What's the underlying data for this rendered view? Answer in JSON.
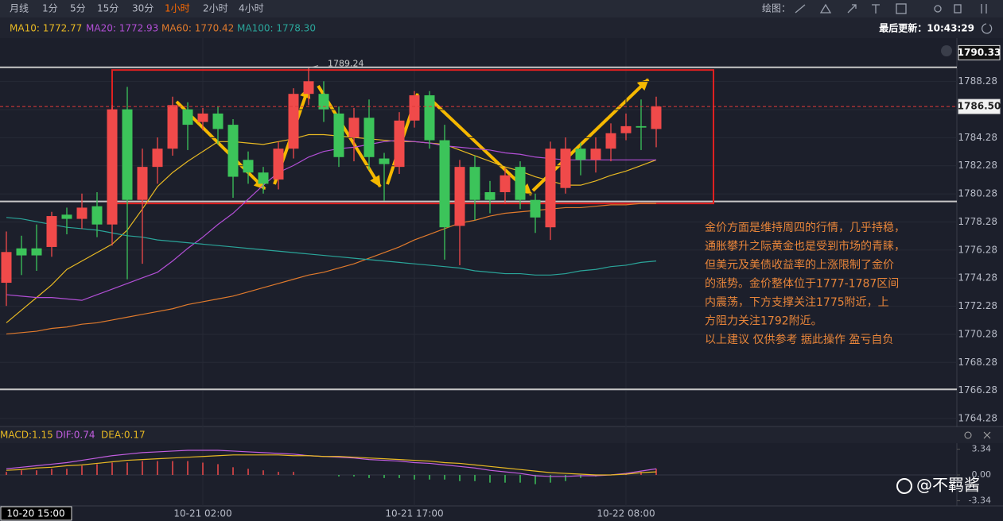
{
  "toolbar": {
    "items": [
      "月线",
      "1分",
      "5分",
      "15分",
      "30分",
      "1小时",
      "2小时",
      "4小时"
    ],
    "active_index": 5,
    "draw_label": "绘图：",
    "last_update": "最后更新：10:43:29"
  },
  "chart_data": [
    {
      "type": "candlestick",
      "up_color": "#f04a4a",
      "down_color": "#3cc45a",
      "categories": [
        null,
        null,
        null,
        null,
        null,
        null,
        null,
        null,
        null,
        null,
        null,
        null,
        null,
        "10-21 02:00",
        null,
        null,
        null,
        null,
        null,
        null,
        null,
        null,
        null,
        null,
        null,
        null,
        null,
        "10-21 17:00",
        null,
        null,
        null,
        null,
        null,
        null,
        null,
        null,
        null,
        null,
        null,
        null,
        null,
        "10-22 08:00",
        null,
        null
      ],
      "crosshair_label": "10-20 15:00",
      "open": [
        1773.95,
        1776.4,
        1776.4,
        1776.5,
        1778.8,
        1778.5,
        1779.4,
        1778.1,
        1786.3,
        1779.85,
        1782.2,
        1783.5,
        1786.3,
        1785.4,
        1786.0,
        1785.2,
        1782.7,
        1781.8,
        1781.3,
        1783.5,
        1787.4,
        1787.4,
        1786.0,
        1784.3,
        1785.7,
        1782.8,
        1782.2,
        1785.5,
        1787.3,
        1784.1,
        1778.0,
        1782.2,
        1780.4,
        1780.4,
        1782.2,
        1779.85,
        1777.9,
        1780.7,
        1783.5,
        1782.7,
        1783.5,
        1784.6,
        1785.1,
        1784.9
      ],
      "high": [
        1777.6,
        1777.3,
        1778.1,
        1779.0,
        1779.3,
        1780.3,
        1780.4,
        1786.6,
        1787.9,
        1783.5,
        1784.3,
        1787.2,
        1786.8,
        1786.4,
        1786.5,
        1785.6,
        1783.3,
        1782.2,
        1784.0,
        1787.8,
        1789.24,
        1788.3,
        1786.5,
        1786.4,
        1787.0,
        1783.2,
        1786.1,
        1787.6,
        1787.6,
        1785.2,
        1782.7,
        1783.0,
        1781.2,
        1782.1,
        1782.6,
        1780.3,
        1784.0,
        1784.3,
        1783.9,
        1784.3,
        1785.3,
        1786.0,
        1787.0,
        1787.2
      ],
      "low": [
        1772.3,
        1774.5,
        1774.8,
        1775.8,
        1777.4,
        1777.8,
        1777.2,
        1776.6,
        1774.2,
        1775.3,
        1781.0,
        1783.0,
        1783.4,
        1784.8,
        1783.8,
        1780.0,
        1781.0,
        1780.3,
        1780.6,
        1782.8,
        1786.6,
        1785.4,
        1782.2,
        1782.6,
        1782.0,
        1779.8,
        1781.7,
        1785.0,
        1783.5,
        1775.6,
        1775.2,
        1778.4,
        1778.9,
        1779.6,
        1779.2,
        1777.5,
        1777.0,
        1780.3,
        1781.6,
        1781.8,
        1782.6,
        1784.1,
        1783.4,
        1783.6
      ],
      "close": [
        1776.14,
        1775.9,
        1775.9,
        1778.7,
        1778.5,
        1779.3,
        1778.1,
        1786.3,
        1779.85,
        1782.2,
        1783.5,
        1786.6,
        1785.2,
        1786.0,
        1784.9,
        1781.5,
        1781.8,
        1781.0,
        1783.5,
        1787.4,
        1788.3,
        1786.3,
        1782.9,
        1785.7,
        1782.9,
        1782.4,
        1785.5,
        1787.3,
        1784.1,
        1777.9,
        1782.2,
        1779.85,
        1779.85,
        1781.6,
        1779.85,
        1778.6,
        1783.5,
        1783.5,
        1782.7,
        1783.5,
        1784.6,
        1785.1,
        1785.0,
        1786.5
      ],
      "series": [
        {
          "legend": "MA10: 1772.77",
          "color": "#e8b923",
          "values": [
            1771.1,
            1772.0,
            1772.9,
            1773.8,
            1774.9,
            1775.5,
            1776.1,
            1776.7,
            1777.7,
            1779.2,
            1780.8,
            1781.8,
            1782.6,
            1783.3,
            1784.0,
            1784.0,
            1783.9,
            1783.8,
            1784.0,
            1784.2,
            1784.5,
            1784.5,
            1784.4,
            1784.3,
            1784.2,
            1784.1,
            1784.0,
            1784.0,
            1783.9,
            1783.8,
            1783.4,
            1783.0,
            1782.6,
            1782.2,
            1781.9,
            1781.5,
            1781.2,
            1780.9,
            1780.9,
            1781.2,
            1781.6,
            1781.9,
            1782.3,
            1782.7
          ]
        },
        {
          "legend": "MA20: 1772.93",
          "color": "#b24fd6",
          "values": [
            1773.1,
            1773.0,
            1772.9,
            1772.9,
            1772.8,
            1772.7,
            1773.1,
            1773.5,
            1773.9,
            1774.3,
            1774.7,
            1775.5,
            1776.4,
            1777.2,
            1778.1,
            1778.9,
            1779.9,
            1780.9,
            1781.8,
            1782.3,
            1782.9,
            1783.3,
            1783.5,
            1783.6,
            1783.8,
            1784.0,
            1784.1,
            1784.0,
            1783.9,
            1783.7,
            1783.6,
            1783.5,
            1783.4,
            1783.2,
            1783.1,
            1782.9,
            1782.8,
            1782.7,
            1782.7,
            1782.7,
            1782.7,
            1782.7,
            1782.7,
            1782.7
          ]
        },
        {
          "legend": "MA60: 1770.42",
          "color": "#e07a2c",
          "values": [
            1770.3,
            1770.4,
            1770.5,
            1770.7,
            1770.8,
            1771.0,
            1771.1,
            1771.3,
            1771.5,
            1771.7,
            1771.9,
            1772.1,
            1772.4,
            1772.6,
            1772.8,
            1773.0,
            1773.3,
            1773.6,
            1773.9,
            1774.2,
            1774.5,
            1774.7,
            1775.0,
            1775.3,
            1775.7,
            1776.1,
            1776.5,
            1777.0,
            1777.4,
            1777.8,
            1778.2,
            1778.4,
            1778.7,
            1778.9,
            1779.0,
            1779.1,
            1779.2,
            1779.3,
            1779.3,
            1779.4,
            1779.5,
            1779.5,
            1779.6,
            1779.6
          ]
        },
        {
          "legend": "MA100: 1778.30",
          "color": "#2aa59a",
          "values": [
            1778.6,
            1778.5,
            1778.3,
            1778.1,
            1777.9,
            1777.8,
            1777.7,
            1777.5,
            1777.3,
            1777.2,
            1777.0,
            1776.9,
            1776.8,
            1776.7,
            1776.6,
            1776.5,
            1776.4,
            1776.3,
            1776.2,
            1776.1,
            1776.0,
            1775.9,
            1775.8,
            1775.7,
            1775.6,
            1775.5,
            1775.4,
            1775.3,
            1775.2,
            1775.1,
            1775.0,
            1774.8,
            1774.7,
            1774.6,
            1774.6,
            1774.5,
            1774.5,
            1774.6,
            1774.8,
            1774.9,
            1775.1,
            1775.2,
            1775.4,
            1775.5
          ]
        }
      ],
      "ylim": [
        1763.83,
        1791.37
      ],
      "yticks": [
        1764.28,
        1766.28,
        1768.28,
        1770.28,
        1772.28,
        1774.28,
        1776.28,
        1778.28,
        1780.28,
        1782.28,
        1784.28,
        1786.28,
        1788.28
      ],
      "price_tags": [
        {
          "value": 1790.33,
          "label": "1790.33"
        },
        {
          "value": 1786.5,
          "label": "1786.50"
        }
      ],
      "drawn_lines": [
        1789.29,
        1779.74,
        1766.36
      ],
      "box": {
        "top": 1789.1,
        "bottom": 1779.6
      },
      "annotation": [
        "金价方面是维持周四的行情，几乎持稳，",
        "通胀攀升之际黄金也是受到市场的青睐，",
        "但美元及美债收益率的上涨限制了金价",
        "的涨势。金价整体位于1777-1787区间",
        "内震荡，下方支撑关注1775附近，上",
        "方阻力关注1792附近。",
        "以上建议 仅供参考 据此操作 盈亏自负"
      ]
    },
    {
      "type": "macd",
      "legend": [
        "MACD:1.15",
        "DIF:0.74",
        "DEA:0.17"
      ],
      "histogram": [
        0.4,
        0.6,
        0.6,
        0.8,
        0.8,
        1.2,
        1.4,
        1.6,
        1.6,
        1.8,
        1.8,
        1.8,
        1.8,
        1.6,
        1.4,
        1.0,
        0.8,
        0.6,
        0.4,
        0.4,
        0,
        0,
        -0.2,
        -0.2,
        -0.4,
        -0.4,
        -0.4,
        -0.6,
        -0.6,
        -0.6,
        -0.8,
        -0.8,
        -1.0,
        -1.0,
        -1.0,
        -1.2,
        -1.0,
        -0.8,
        -0.4,
        -0.2,
        0,
        0.2,
        0.4,
        0.8
      ],
      "series": [
        {
          "color": "#c25ee0",
          "values": [
            0.8,
            1.0,
            1.2,
            1.4,
            1.6,
            1.9,
            2.2,
            2.5,
            2.7,
            2.9,
            3.0,
            3.1,
            3.2,
            3.2,
            3.2,
            3.1,
            3.0,
            2.9,
            2.8,
            2.7,
            2.5,
            2.4,
            2.3,
            2.2,
            2.0,
            1.9,
            1.8,
            1.6,
            1.5,
            1.3,
            1.1,
            0.9,
            0.6,
            0.4,
            0.2,
            -0.1,
            -0.2,
            -0.2,
            -0.1,
            -0.1,
            0.0,
            0.2,
            0.5,
            0.8
          ]
        },
        {
          "color": "#e8b923",
          "values": [
            0.6,
            0.7,
            0.9,
            1.0,
            1.2,
            1.3,
            1.5,
            1.7,
            1.9,
            2.0,
            2.1,
            2.2,
            2.3,
            2.4,
            2.5,
            2.6,
            2.6,
            2.6,
            2.6,
            2.5,
            2.5,
            2.4,
            2.4,
            2.3,
            2.2,
            2.1,
            2.0,
            1.9,
            1.8,
            1.6,
            1.5,
            1.3,
            1.1,
            0.9,
            0.7,
            0.5,
            0.3,
            0.2,
            0.1,
            0.0,
            0.0,
            0.1,
            0.3,
            0.4
          ]
        }
      ],
      "ylim": [
        -3.92,
        3.92
      ],
      "yticks": [
        3.34,
        {
          "value": 0,
          "label": "0.00"
        },
        -3.34
      ]
    }
  ],
  "watermark": "@不羁酱"
}
